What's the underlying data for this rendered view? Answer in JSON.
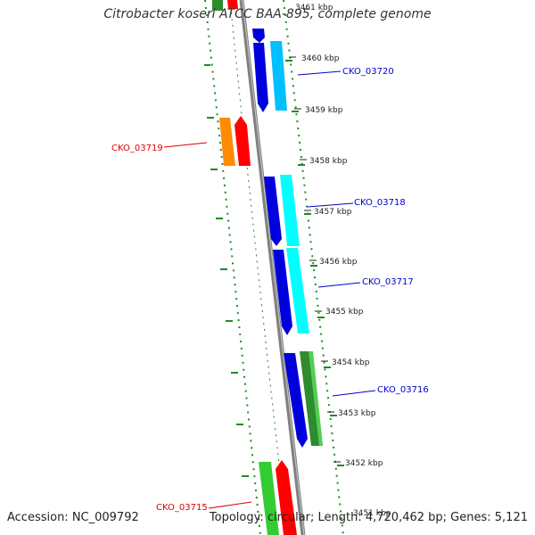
{
  "title": "Citrobacter koseri ATCC BAA-895, complete genome",
  "footer": {
    "accession": "Accession: NC_009792",
    "summary": "Topology: circular; Length: 4,720,462 bp; Genes: 5,121"
  },
  "colors": {
    "backbone": "#808080",
    "forward_label": "#0000cc",
    "reverse_label": "#dd0000",
    "gc_dots": "#228b22"
  },
  "ticks": [
    "3461 kbp",
    "3460 kbp",
    "3459 kbp",
    "3458 kbp",
    "3457 kbp",
    "3456 kbp",
    "3455 kbp",
    "3454 kbp",
    "3453 kbp",
    "3452 kbp",
    "3451 kbp"
  ],
  "gene_labels": [
    "CKO_03720",
    "CKO_03719",
    "CKO_03718",
    "CKO_03717",
    "CKO_03716",
    "CKO_03715"
  ]
}
